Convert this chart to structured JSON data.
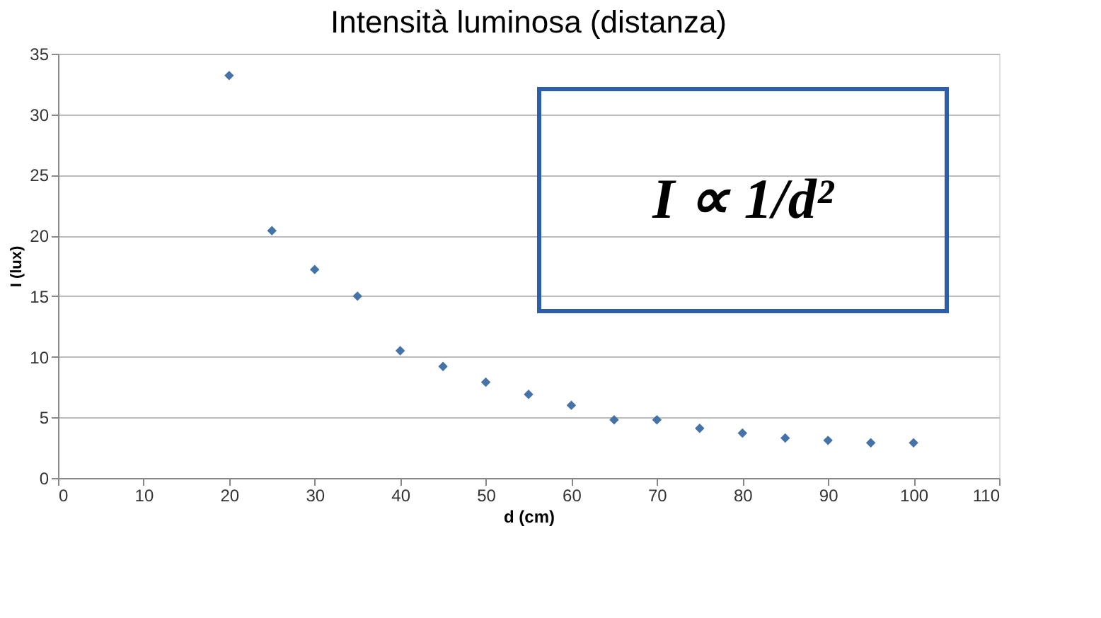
{
  "chart_data": {
    "type": "scatter",
    "title": "Intensità luminosa (distanza)",
    "xlabel": "d (cm)",
    "ylabel": "I (lux)",
    "x": [
      20,
      25,
      30,
      35,
      40,
      45,
      50,
      55,
      60,
      65,
      70,
      75,
      80,
      85,
      90,
      95,
      100
    ],
    "series": [
      {
        "color": "#4572a7",
        "values": [
          33.2,
          20.4,
          17.2,
          15.0,
          10.5,
          9.2,
          7.9,
          6.9,
          6.0,
          4.8,
          4.8,
          4.1,
          3.7,
          3.3,
          3.1,
          2.9,
          2.9
        ]
      }
    ],
    "xlim": [
      0,
      110
    ],
    "xticks": [
      0,
      10,
      20,
      30,
      40,
      50,
      60,
      70,
      80,
      90,
      100,
      110
    ],
    "ylim": [
      0,
      35
    ],
    "yticks": [
      0,
      5,
      10,
      15,
      20,
      25,
      30,
      35
    ],
    "grid": "y",
    "marker": "diamond",
    "annotations": [
      "I ∝ 1/d²"
    ]
  }
}
